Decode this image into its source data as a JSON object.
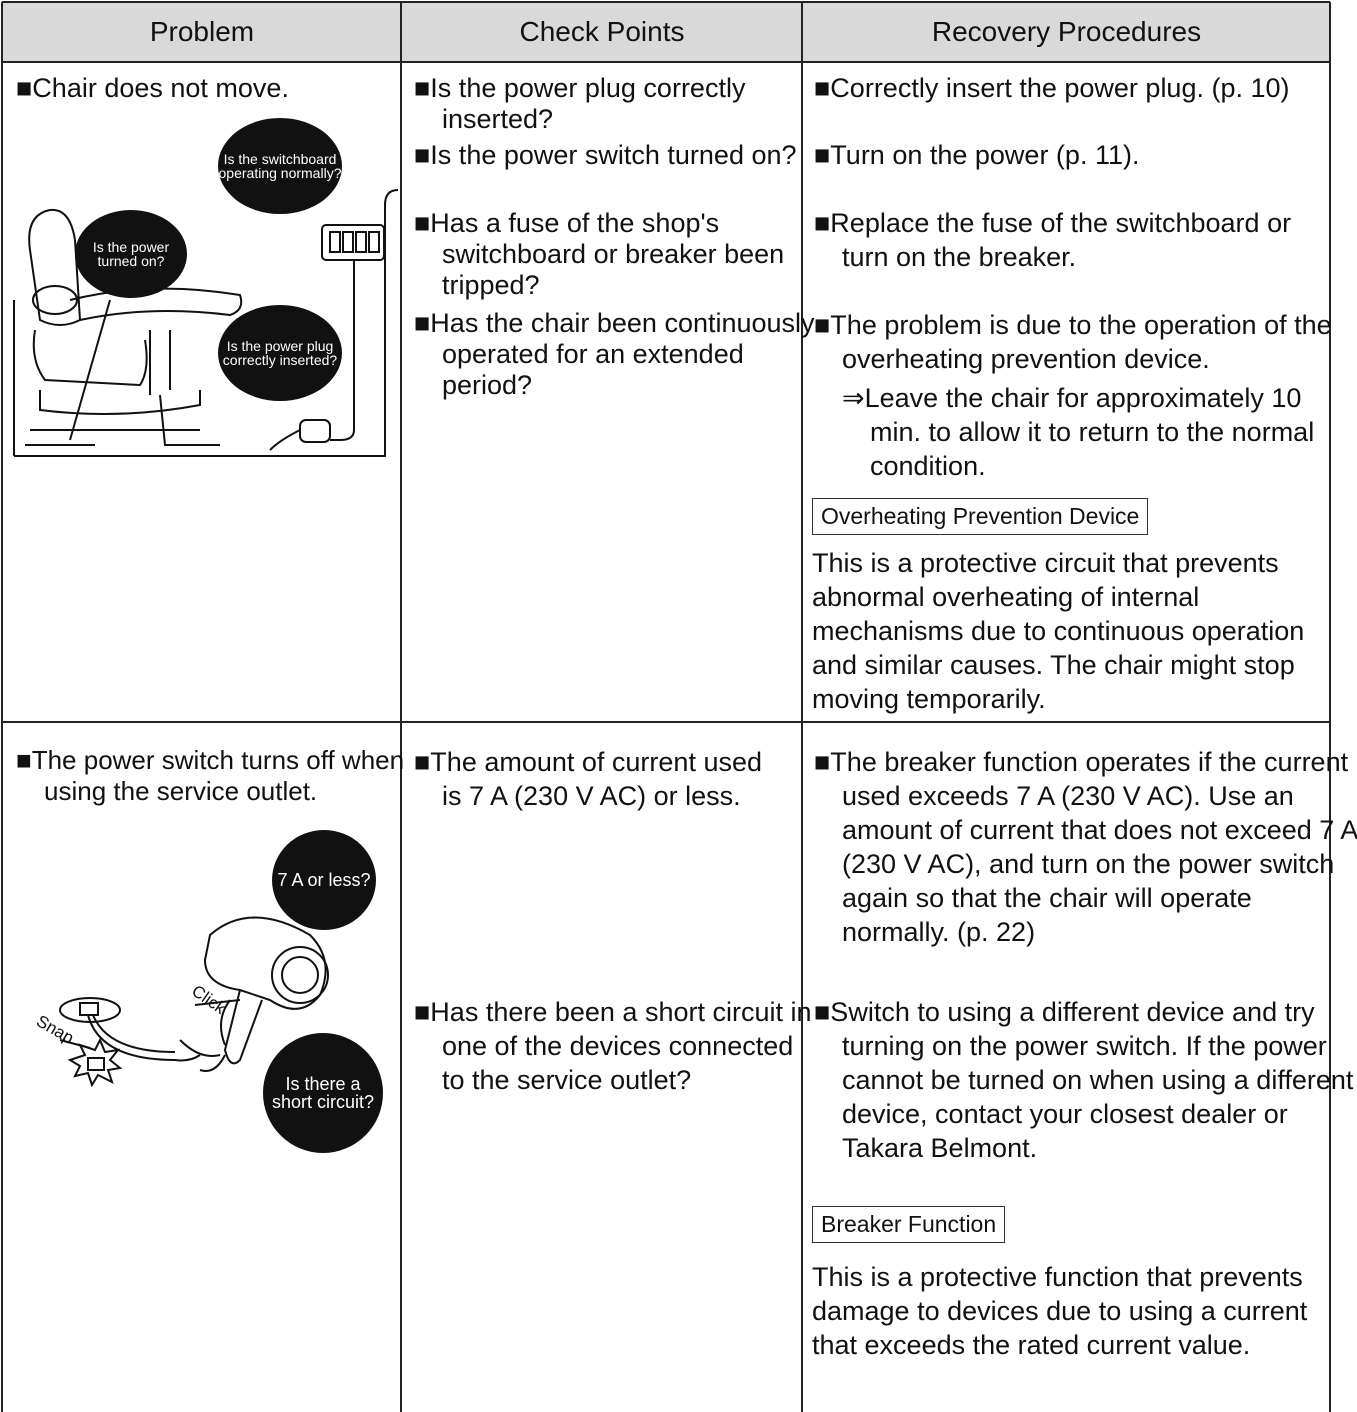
{
  "table": {
    "headers": [
      "Problem",
      "Check Points",
      "Recovery Procedures"
    ],
    "rows": [
      {
        "problem": "■Chair does not move.",
        "illustration": {
          "labels": [
            "Is the switchboard operating normally?",
            "Is the power turned on?",
            "Is the power plug correctly inserted?"
          ]
        },
        "check_points": [
          "■Is the power plug correctly inserted?",
          "■Is the power switch turned on?",
          "■Has a fuse of the shop's switchboard or breaker been tripped?",
          "■Has the chair been continuously operated for an extended period?"
        ],
        "recovery": [
          "■Correctly insert the power plug. (p. 10)",
          "■Turn on the power (p. 11).",
          "■Replace the fuse of the switchboard or turn on the breaker.",
          "■The problem is due to the operation of the overheating prevention device."
        ],
        "recovery_sub": "⇒Leave the chair for approximately 10 min. to allow it to return to the normal condition.",
        "note": {
          "title": "Overheating Prevention Device",
          "text": "This is a protective circuit that prevents abnormal overheating of internal mechanisms due to continuous operation and similar causes. The chair might stop moving temporarily."
        }
      },
      {
        "problem": "■The power switch turns off when using the service outlet.",
        "illustration": {
          "labels": [
            "7 A or less?",
            "Click",
            "Snap",
            "Is there a short circuit?"
          ]
        },
        "check_points": [
          "■The amount of current used is 7 A (230 V AC) or less.",
          "■Has there been a short circuit in one of the devices connected to the service outlet?"
        ],
        "recovery": [
          "■The breaker function operates if the current used exceeds 7 A (230 V AC). Use an amount of current that does not exceed 7 A (230 V AC), and turn on the power switch again so that the chair will operate normally. (p. 22)",
          "■Switch to using a different device and try turning on the power switch. If the power cannot be turned on when using a different device, contact your closest dealer or Takara Belmont."
        ],
        "note": {
          "title": "Breaker Function",
          "text": "This is a protective function that prevents damage to devices due to using a current that exceeds the rated current value."
        }
      }
    ]
  }
}
